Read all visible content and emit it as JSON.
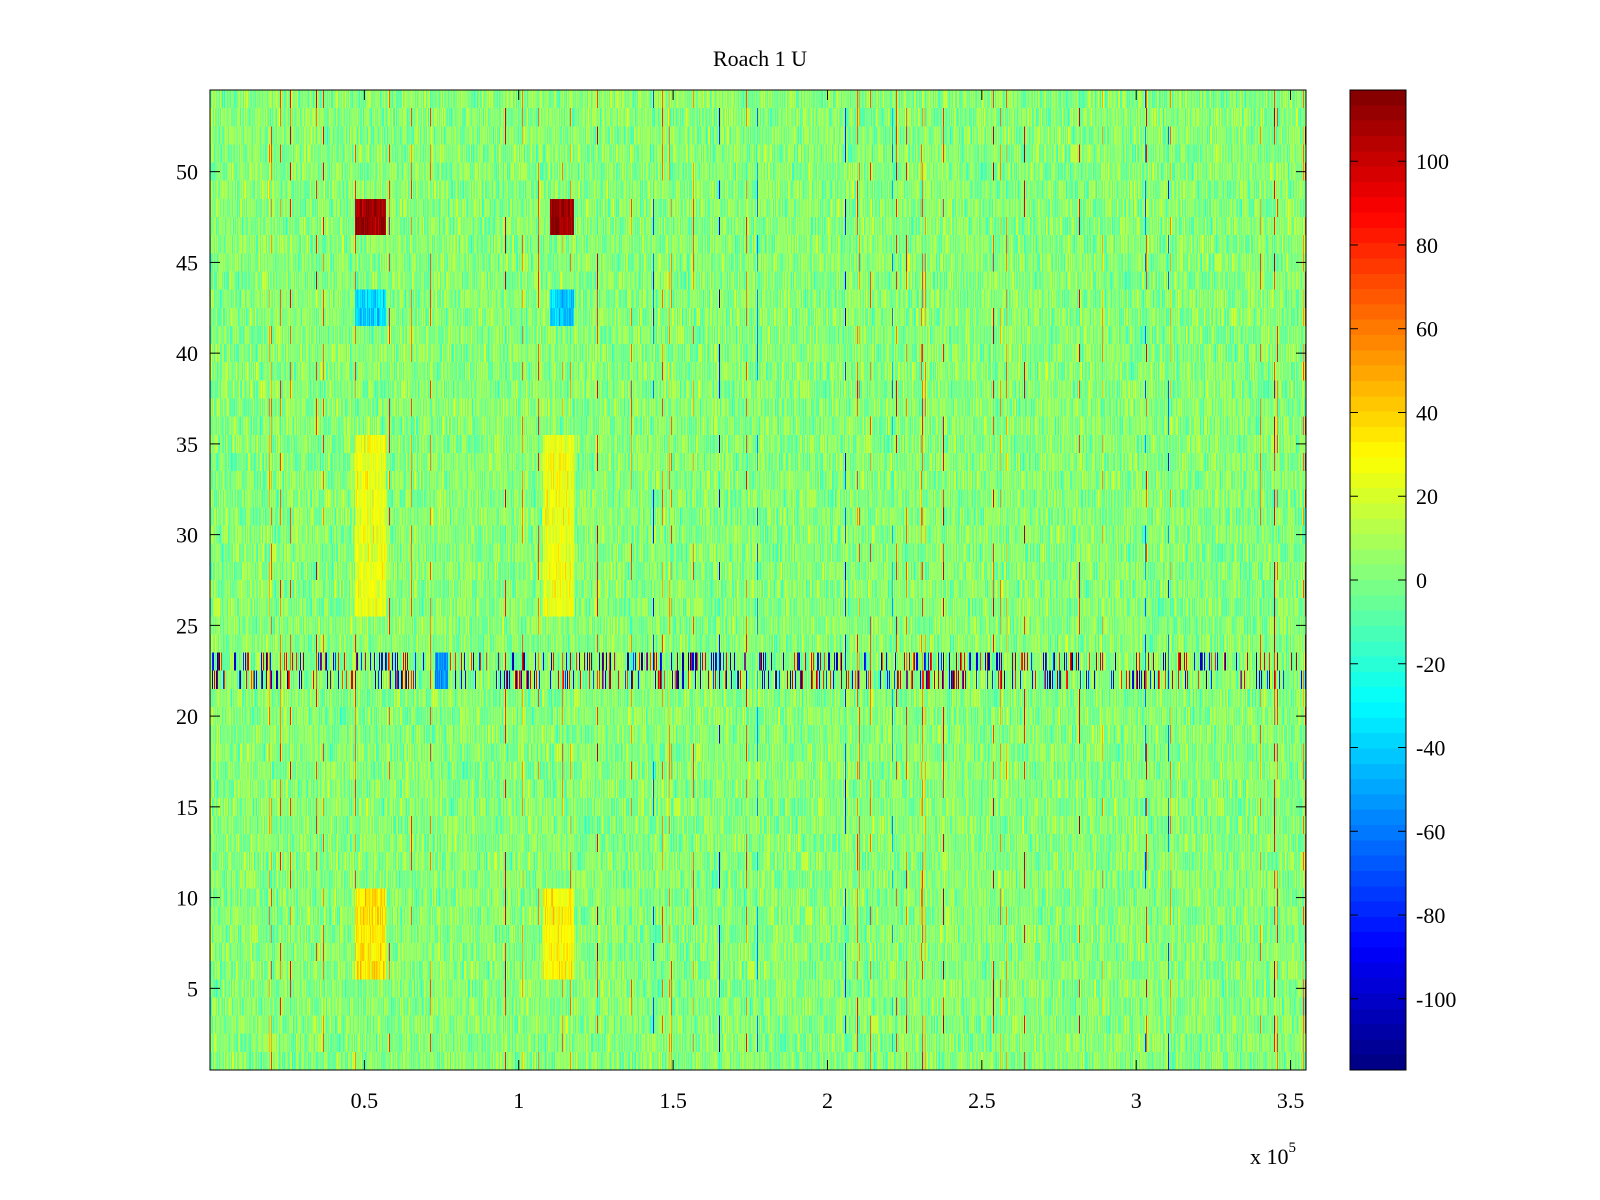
{
  "chart_data": {
    "type": "heatmap",
    "title": "Roach 1 U",
    "xlabel": "",
    "ylabel": "",
    "x_exponent_label": "x 10",
    "x_exponent_power": "5",
    "xlim": [
      0,
      3.55
    ],
    "ylim": [
      0.5,
      54.5
    ],
    "x_ticks": [
      0.5,
      1,
      1.5,
      2,
      2.5,
      3,
      3.5
    ],
    "x_tick_labels": [
      "0.5",
      "1",
      "1.5",
      "2",
      "2.5",
      "3",
      "3.5"
    ],
    "y_ticks": [
      5,
      10,
      15,
      20,
      25,
      30,
      35,
      40,
      45,
      50
    ],
    "y_tick_labels": [
      "5",
      "10",
      "15",
      "20",
      "25",
      "30",
      "35",
      "40",
      "45",
      "50"
    ],
    "n_rows": 54,
    "colormap": "jet",
    "colorbar": {
      "clim": [
        -117,
        117
      ],
      "ticks": [
        100,
        80,
        60,
        40,
        20,
        0,
        -20,
        -40,
        -60,
        -80,
        -100
      ],
      "tick_labels": [
        "100",
        "80",
        "60",
        "40",
        "20",
        "0",
        "-20",
        "-40",
        "-60",
        "-80",
        "-100"
      ],
      "position": "right"
    },
    "features": [
      {
        "rows": [
          47,
          48
        ],
        "x_range": [
          0.47,
          0.57
        ],
        "value": 110
      },
      {
        "rows": [
          47,
          48
        ],
        "x_range": [
          1.1,
          1.18
        ],
        "value": 110
      },
      {
        "rows": [
          42,
          43
        ],
        "x_range": [
          0.47,
          0.57
        ],
        "value": -40
      },
      {
        "rows": [
          42,
          43
        ],
        "x_range": [
          1.1,
          1.18
        ],
        "value": -40
      },
      {
        "rows": [
          22,
          23
        ],
        "x_range": [
          0.73,
          0.77
        ],
        "value": -55
      },
      {
        "rows": [
          26,
          35
        ],
        "x_range": [
          0.47,
          0.57
        ],
        "value": 25
      },
      {
        "rows": [
          26,
          35
        ],
        "x_range": [
          1.08,
          1.18
        ],
        "value": 25
      },
      {
        "rows": [
          6,
          10
        ],
        "x_range": [
          0.47,
          0.57
        ],
        "value": 35
      },
      {
        "rows": [
          6,
          10
        ],
        "x_range": [
          1.08,
          1.18
        ],
        "value": 30
      }
    ],
    "grid": false
  }
}
